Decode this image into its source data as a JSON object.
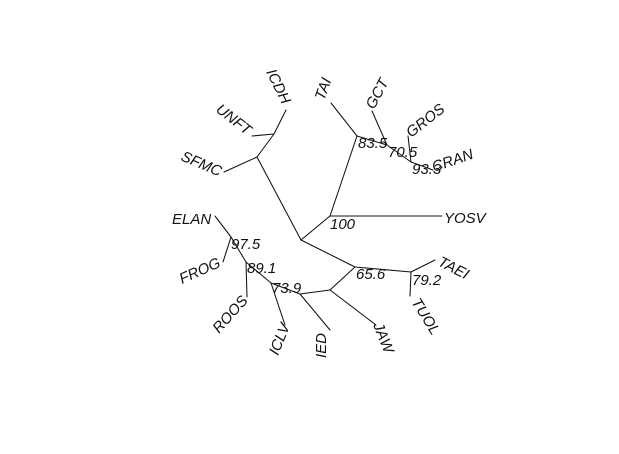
{
  "tree": {
    "type": "unrooted phylogenetic tree",
    "line_color": "#111111",
    "tip_labels": {
      "icdh": "ICDH",
      "tai": "TAI",
      "gct": "GCT",
      "unft": "UNFT",
      "gros": "GROS",
      "sfmc": "SFMC",
      "cran": "CRAN",
      "elan": "ELAN",
      "yosv": "YOSV",
      "frog": "FROG",
      "taei": "TAEI",
      "roos": "ROOS",
      "tuol": "TUOL",
      "iclv": "ICLV",
      "ied": "IED",
      "jaw": "JAW"
    },
    "support_values": {
      "n835": "83.5",
      "n705": "70.5",
      "n933": "93.3",
      "n100": "100",
      "n975": "97.5",
      "n891": "89.1",
      "n739": "73.9",
      "n656": "65.6",
      "n792": "79.2"
    }
  }
}
